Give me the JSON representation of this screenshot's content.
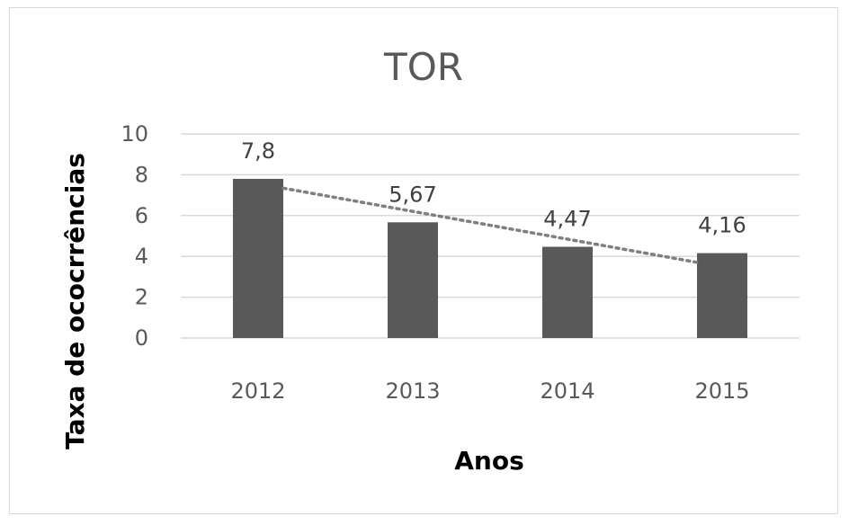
{
  "chart_data": {
    "type": "bar",
    "title": "TOR",
    "xlabel": "Anos",
    "ylabel": "Taxa de ococrrências",
    "categories": [
      "2012",
      "2013",
      "2014",
      "2015"
    ],
    "values": [
      7.8,
      5.67,
      4.47,
      4.16
    ],
    "data_labels": [
      "7,8",
      "5,67",
      "4,47",
      "4,16"
    ],
    "ylim": [
      0,
      10
    ],
    "yticks": [
      "0",
      "2",
      "4",
      "6",
      "8",
      "10"
    ],
    "grid": true,
    "trendline": "linear, dotted",
    "colors": {
      "bar": "#595959",
      "grid": "#d9d9d9",
      "trendline": "#7f7f7f"
    }
  }
}
